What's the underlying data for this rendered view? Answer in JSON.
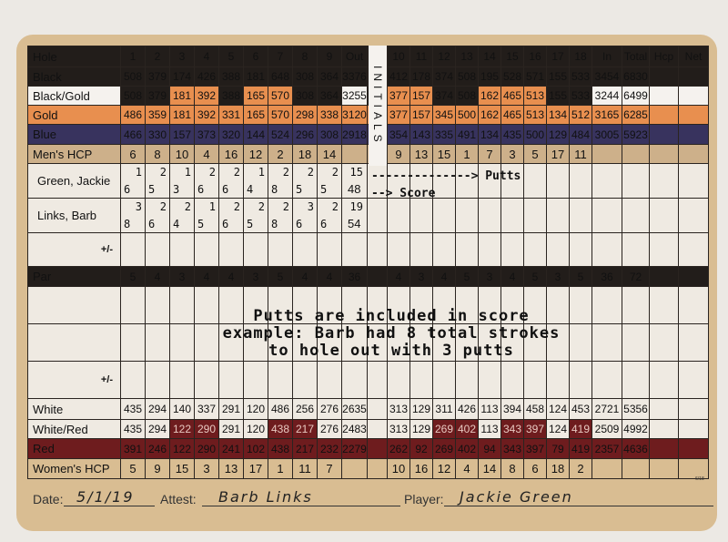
{
  "initials_label": "INITIALS",
  "colors": {
    "black": "#221d1a",
    "gold": "#e88f4f",
    "blue": "#38335e",
    "red": "#6e1c1e",
    "tan": "#cdb08a",
    "card": "#d9bd92"
  },
  "top_rows": [
    {
      "cls": "hole",
      "label": "Hole",
      "cells": [
        "1",
        "2",
        "3",
        "4",
        "5",
        "6",
        "7",
        "8",
        "9",
        "Out",
        "10",
        "11",
        "12",
        "13",
        "14",
        "15",
        "16",
        "17",
        "18",
        "In",
        "Total",
        "Hcp",
        "Net"
      ]
    },
    {
      "cls": "black",
      "label": "Black",
      "cells": [
        "508",
        "379",
        "174",
        "426",
        "388",
        "181",
        "648",
        "308",
        "364",
        "3376",
        "412",
        "178",
        "374",
        "508",
        "195",
        "528",
        "571",
        "155",
        "533",
        "3454",
        "6830",
        "",
        ""
      ]
    },
    {
      "cls": "bg",
      "label": "Black/Gold",
      "label_color": "white",
      "cells": [
        "508",
        "379",
        "181",
        "392",
        "388",
        "165",
        "570",
        "308",
        "364",
        "3255",
        "377",
        "157",
        "374",
        "508",
        "162",
        "465",
        "513",
        "155",
        "533",
        "3244",
        "6499",
        "",
        ""
      ],
      "cell_colors": [
        "",
        "",
        "gold",
        "gold",
        "",
        "gold",
        "gold",
        "",
        "",
        "white",
        "gold",
        "gold",
        "",
        "",
        "gold",
        "gold",
        "gold",
        "",
        "",
        "white",
        "white",
        "white",
        "white"
      ]
    },
    {
      "cls": "gold",
      "label": "Gold",
      "cells": [
        "486",
        "359",
        "181",
        "392",
        "331",
        "165",
        "570",
        "298",
        "338",
        "3120",
        "377",
        "157",
        "345",
        "500",
        "162",
        "465",
        "513",
        "134",
        "512",
        "3165",
        "6285",
        "",
        ""
      ]
    },
    {
      "cls": "blue",
      "label": "Blue",
      "cells": [
        "466",
        "330",
        "157",
        "373",
        "320",
        "144",
        "524",
        "296",
        "308",
        "2918",
        "354",
        "143",
        "335",
        "491",
        "134",
        "435",
        "500",
        "129",
        "484",
        "3005",
        "5923",
        "",
        ""
      ]
    },
    {
      "cls": "hcp",
      "label": "Men's HCP",
      "cells": [
        "6",
        "8",
        "10",
        "4",
        "16",
        "12",
        "2",
        "18",
        "14",
        "",
        "9",
        "13",
        "15",
        "1",
        "7",
        "3",
        "5",
        "17",
        "11",
        "",
        "",
        "",
        ""
      ]
    }
  ],
  "players": [
    {
      "name": "Green, Jackie",
      "putts": [
        "1",
        "2",
        "1",
        "2",
        "2",
        "1",
        "2",
        "2",
        "2"
      ],
      "scores": [
        "6",
        "5",
        "3",
        "6",
        "6",
        "4",
        "8",
        "5",
        "5"
      ],
      "out_putts": "15",
      "out_score": "48"
    },
    {
      "name": "Links, Barb",
      "putts": [
        "3",
        "2",
        "2",
        "1",
        "2",
        "2",
        "2",
        "3",
        "2"
      ],
      "scores": [
        "8",
        "6",
        "4",
        "5",
        "6",
        "5",
        "8",
        "6",
        "6"
      ],
      "out_putts": "19",
      "out_score": "54"
    }
  ],
  "plus_minus_label": "+/-",
  "par_row": {
    "cls": "par",
    "label": "Par",
    "cells": [
      "5",
      "4",
      "3",
      "4",
      "4",
      "3",
      "5",
      "4",
      "4",
      "36",
      "4",
      "3",
      "4",
      "5",
      "3",
      "4",
      "5",
      "3",
      "5",
      "36",
      "72",
      "",
      ""
    ]
  },
  "bottom_rows": [
    {
      "cls": "white",
      "label": "White",
      "cells": [
        "435",
        "294",
        "140",
        "337",
        "291",
        "120",
        "486",
        "256",
        "276",
        "2635",
        "313",
        "129",
        "311",
        "426",
        "113",
        "394",
        "458",
        "124",
        "453",
        "2721",
        "5356",
        "",
        ""
      ]
    },
    {
      "cls": "wr",
      "label": "White/Red",
      "cells": [
        "435",
        "294",
        "122",
        "290",
        "291",
        "120",
        "438",
        "217",
        "276",
        "2483",
        "313",
        "129",
        "269",
        "402",
        "113",
        "343",
        "397",
        "124",
        "419",
        "2509",
        "4992",
        "",
        ""
      ],
      "cell_colors": [
        "",
        "",
        "red",
        "red",
        "",
        "",
        "red",
        "red",
        "",
        "",
        "",
        "",
        "red",
        "red",
        "",
        "red",
        "red",
        "",
        "red",
        "",
        "",
        "",
        ""
      ]
    },
    {
      "cls": "red",
      "label": "Red",
      "cells": [
        "391",
        "246",
        "122",
        "290",
        "241",
        "102",
        "438",
        "217",
        "232",
        "2279",
        "262",
        "92",
        "269",
        "402",
        "94",
        "343",
        "397",
        "79",
        "419",
        "2357",
        "4636",
        "",
        ""
      ]
    },
    {
      "cls": "whcp",
      "label": "Women's HCP",
      "cells": [
        "5",
        "9",
        "15",
        "3",
        "13",
        "17",
        "1",
        "11",
        "7",
        "",
        "10",
        "16",
        "12",
        "4",
        "14",
        "8",
        "6",
        "18",
        "2",
        "",
        "",
        "",
        ""
      ]
    }
  ],
  "annotations": {
    "putts": "--------------> Putts",
    "score": "--> Score",
    "example": [
      "Putts are included in score",
      "example: Barb had 8 total strokes",
      "to hole out with 3 putts"
    ]
  },
  "footer": {
    "date_label": "Date:",
    "date_value": "5/1/19",
    "attest_label": "Attest:",
    "attest_value": "Barb Links",
    "player_label": "Player:",
    "player_value": "Jackie Green",
    "version": "6/18"
  }
}
